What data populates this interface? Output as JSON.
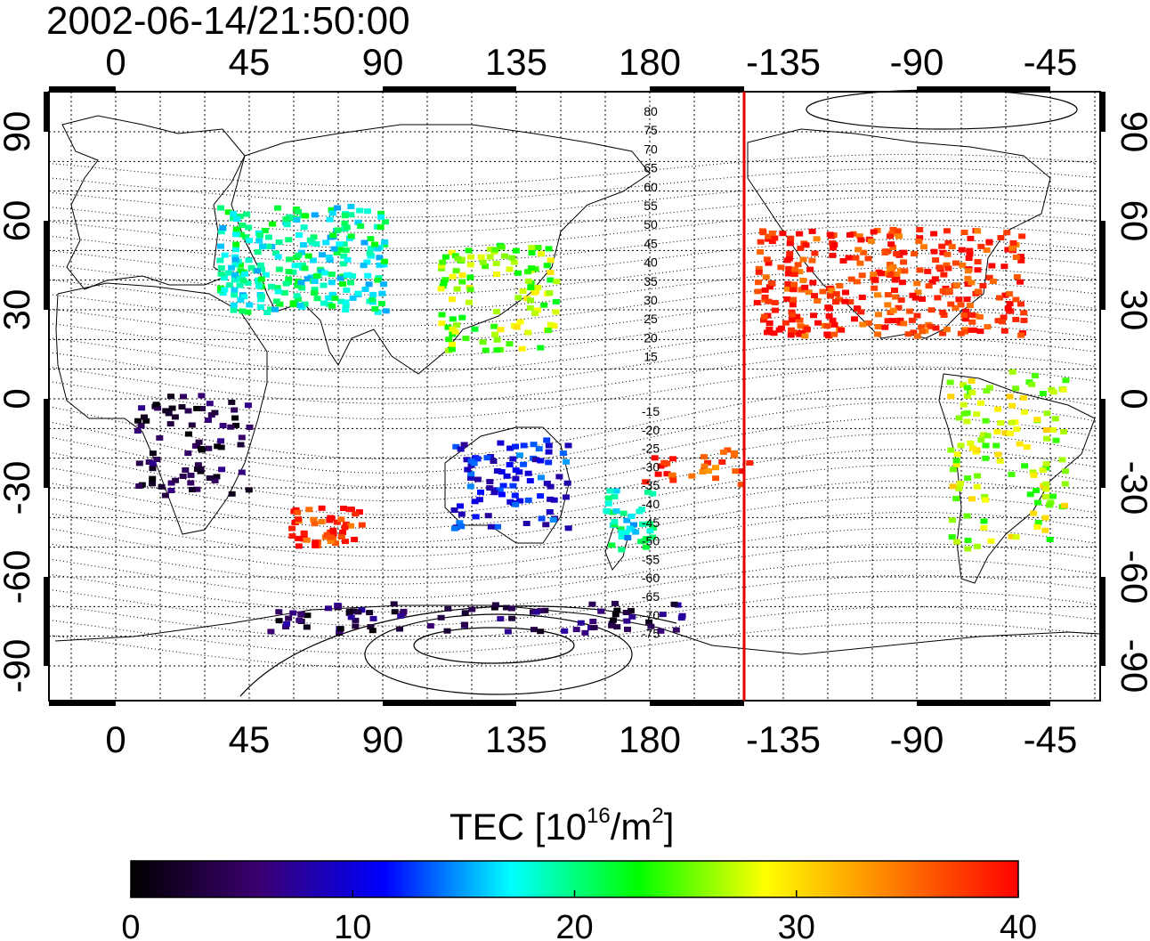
{
  "header": {
    "timestamp": "2002-06-14/21:50:00"
  },
  "map": {
    "lon_ticks_top": [
      "0",
      "45",
      "90",
      "135",
      "180",
      "-135",
      "-90",
      "-45"
    ],
    "lon_ticks_bottom": [
      "0",
      "45",
      "90",
      "135",
      "180",
      "-135",
      "-90",
      "-45"
    ],
    "lat_ticks_left": [
      "90",
      "60",
      "30",
      "0",
      "-30",
      "-60",
      "-90"
    ],
    "lat_ticks_right": [
      "90",
      "60",
      "30",
      "0",
      "-30",
      "-60",
      "-90"
    ],
    "dip_labels_north": [
      "80",
      "75",
      "70",
      "65",
      "60",
      "55",
      "50",
      "45",
      "40",
      "35",
      "30",
      "25",
      "20",
      "15"
    ],
    "dip_labels_south": [
      "-15",
      "-20",
      "-25",
      "-30",
      "-35",
      "-40",
      "-45",
      "-50",
      "-55",
      "-60",
      "-65",
      "-70",
      "-75"
    ],
    "terminator_line_color": "#e00000",
    "regions": [
      {
        "name": "europe",
        "tec_level": 19
      },
      {
        "name": "japan-east-asia",
        "tec_level": 26
      },
      {
        "name": "north-america",
        "tec_level": 38
      },
      {
        "name": "south-america",
        "tec_level": 27
      },
      {
        "name": "africa",
        "tec_level": 3
      },
      {
        "name": "australia",
        "tec_level": 11
      },
      {
        "name": "antarctica",
        "tec_level": 4
      },
      {
        "name": "south-indian-ocean",
        "tec_level": 38
      },
      {
        "name": "new-zealand",
        "tec_level": 18
      },
      {
        "name": "pacific-islands",
        "tec_level": 37
      }
    ]
  },
  "colorbar": {
    "title_prefix": "TEC  [10",
    "title_exp1": "16",
    "title_mid": "/m",
    "title_exp2": "2",
    "title_suffix": "]",
    "min": 0,
    "max": 40,
    "tick_labels": [
      "0",
      "10",
      "20",
      "30",
      "40"
    ],
    "colors": [
      "#000000",
      "#3a0070",
      "#0000ff",
      "#00ffff",
      "#00ff00",
      "#ffff00",
      "#ff8000",
      "#ff0000"
    ]
  }
}
